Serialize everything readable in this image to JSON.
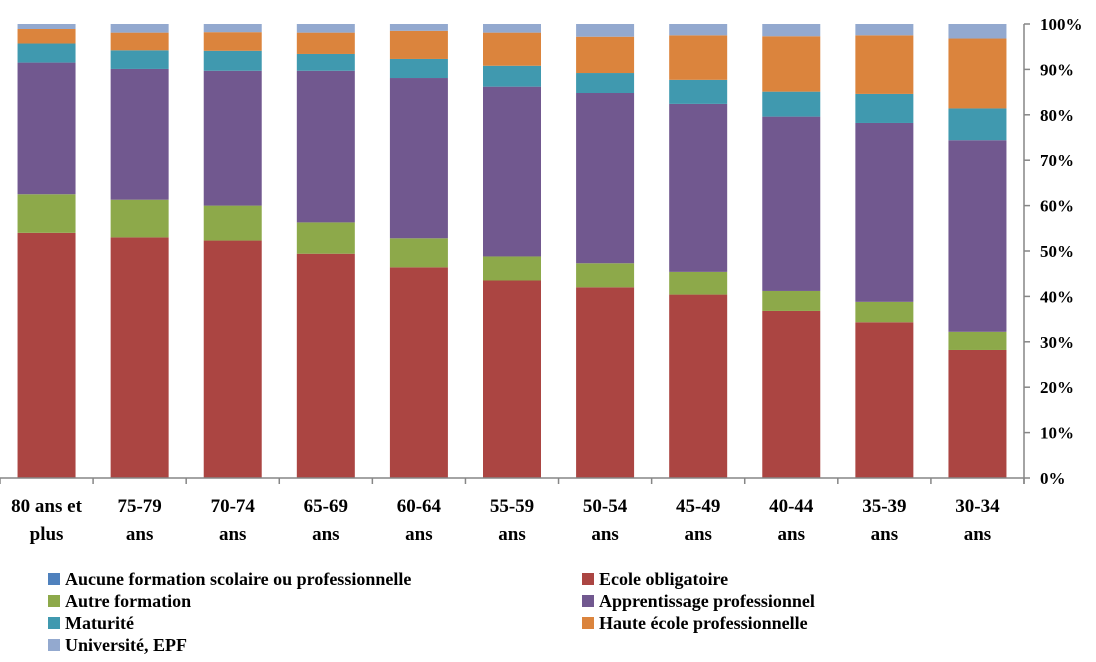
{
  "chart_data": {
    "type": "bar",
    "stacked": true,
    "percent": true,
    "title": "",
    "xlabel": "",
    "ylabel": "",
    "ylim": [
      0,
      100
    ],
    "y_axis_side": "right",
    "y_ticks": [
      "0%",
      "10%",
      "20%",
      "30%",
      "40%",
      "50%",
      "60%",
      "70%",
      "80%",
      "90%",
      "100%"
    ],
    "grid": false,
    "legend_position": "bottom",
    "categories": [
      [
        "80 ans et",
        "plus"
      ],
      [
        "75-79",
        "ans"
      ],
      [
        "70-74",
        "ans"
      ],
      [
        "65-69",
        "ans"
      ],
      [
        "60-64",
        "ans"
      ],
      [
        "55-59",
        "ans"
      ],
      [
        "50-54",
        "ans"
      ],
      [
        "45-49",
        "ans"
      ],
      [
        "40-44",
        "ans"
      ],
      [
        "35-39",
        "ans"
      ],
      [
        "30-34",
        "ans"
      ]
    ],
    "series": [
      {
        "name": "Aucune formation scolaire ou professionnelle",
        "color": "#4F81BD",
        "values": [
          0,
          0,
          0,
          0,
          0,
          0,
          0,
          0,
          0,
          0,
          0
        ]
      },
      {
        "name": "Ecole obligatoire",
        "color": "#AB4542",
        "values": [
          54,
          53,
          52.3,
          49.4,
          46.4,
          43.5,
          42,
          40.4,
          36.8,
          34.3,
          28.2
        ]
      },
      {
        "name": "Autre formation",
        "color": "#8DA94A",
        "values": [
          8.5,
          8.3,
          7.7,
          6.9,
          6.4,
          5.3,
          5.3,
          5,
          4.4,
          4.5,
          4
        ]
      },
      {
        "name": "Apprentissage professionnel",
        "color": "#71588F",
        "values": [
          29,
          28.8,
          29.7,
          33.4,
          35.3,
          37.4,
          37.5,
          37,
          38.4,
          39.4,
          42.2
        ]
      },
      {
        "name": "Maturité",
        "color": "#4099AF",
        "values": [
          4.2,
          4.1,
          4.4,
          3.7,
          4.2,
          4.6,
          4.4,
          5.3,
          5.5,
          6.4,
          7
        ]
      },
      {
        "name": "Haute école professionnelle",
        "color": "#DB843D",
        "values": [
          3.2,
          3.9,
          4.1,
          4.7,
          6.2,
          7.3,
          8,
          9.8,
          12.2,
          12.9,
          15.4
        ]
      },
      {
        "name": "Université, EPF",
        "color": "#93A9CF",
        "values": [
          1.1,
          1.9,
          1.8,
          1.9,
          1.5,
          1.9,
          2.8,
          2.5,
          2.7,
          2.5,
          3.2
        ]
      }
    ]
  }
}
